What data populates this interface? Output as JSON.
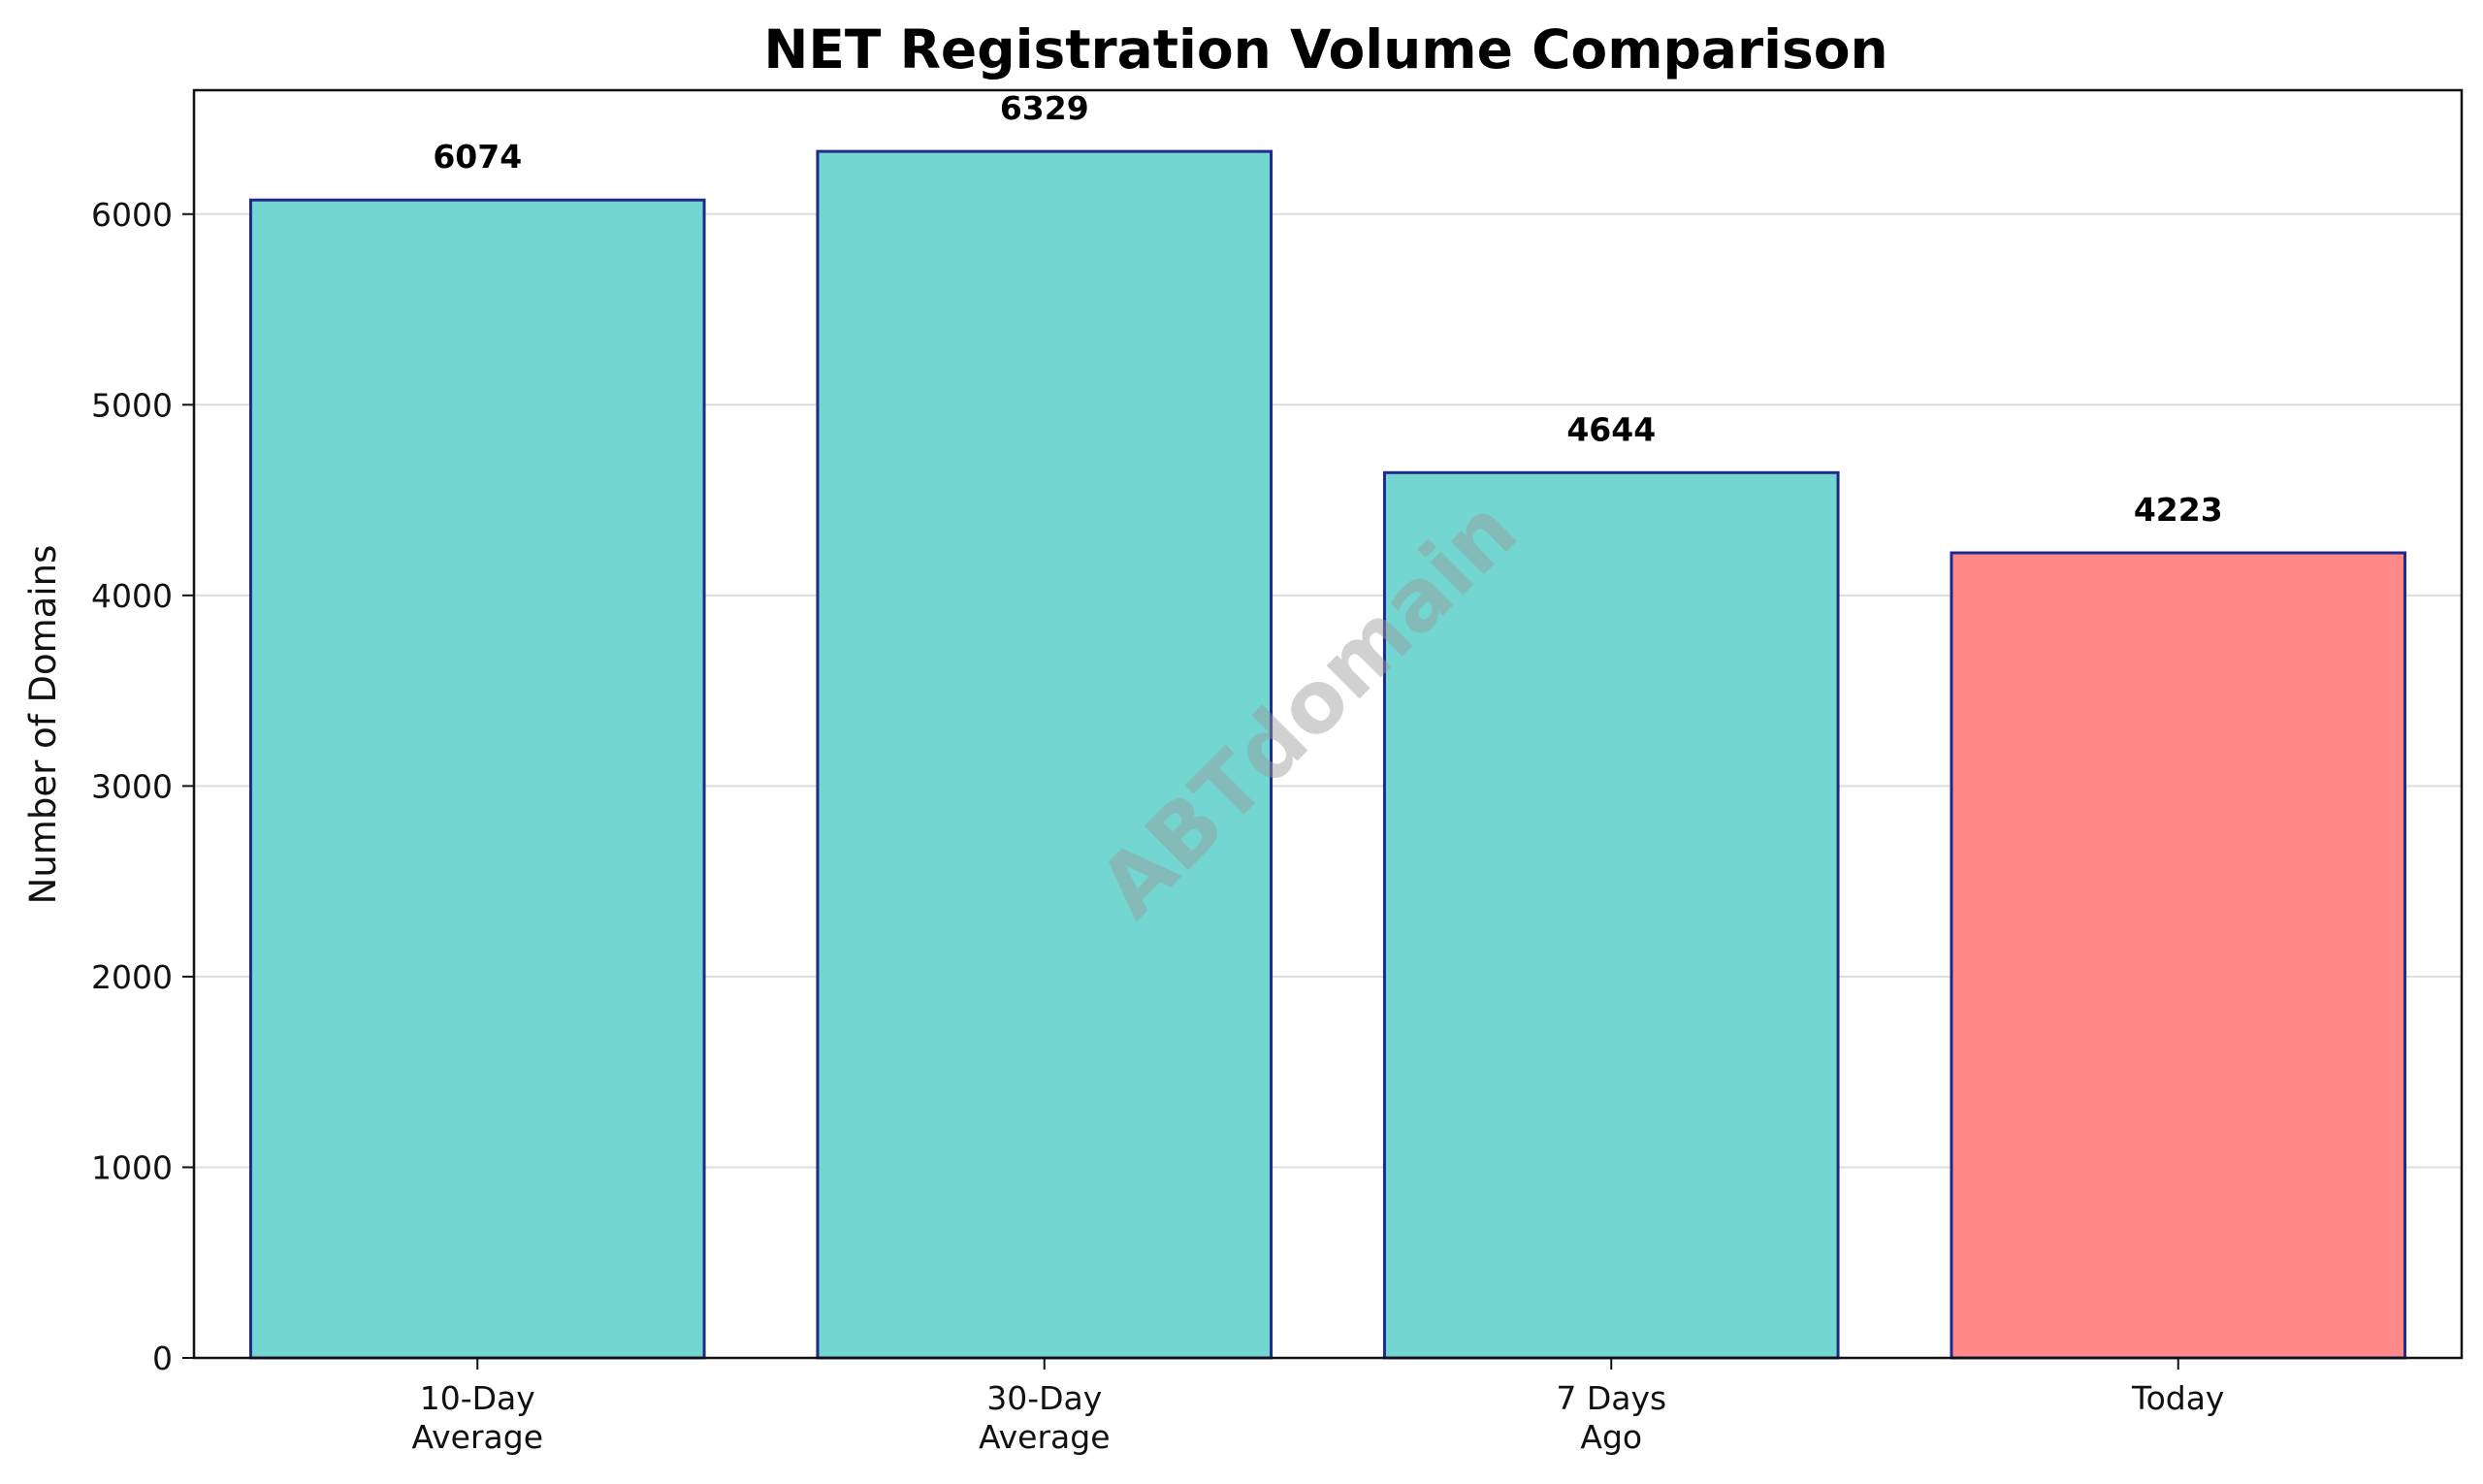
{
  "chart_data": {
    "type": "bar",
    "title": "NET Registration Volume Comparison",
    "xlabel": "",
    "ylabel": "Number of Domains",
    "categories": [
      [
        "10-Day",
        "Average"
      ],
      [
        "30-Day",
        "Average"
      ],
      [
        "7 Days",
        "Ago"
      ],
      [
        "Today"
      ]
    ],
    "values": [
      6074,
      6329,
      4644,
      4223
    ],
    "data_labels": [
      "6074",
      "6329",
      "4644",
      "4223"
    ],
    "bar_colors": [
      "#73D6D0",
      "#73D6D0",
      "#73D6D0",
      "#FF8888"
    ],
    "bar_edge_color": "#1F2A8A",
    "ylim": [
      0,
      6650
    ],
    "yticks": [
      0,
      1000,
      2000,
      3000,
      4000,
      5000,
      6000
    ],
    "grid": "y",
    "watermark": "ABTdomain"
  }
}
